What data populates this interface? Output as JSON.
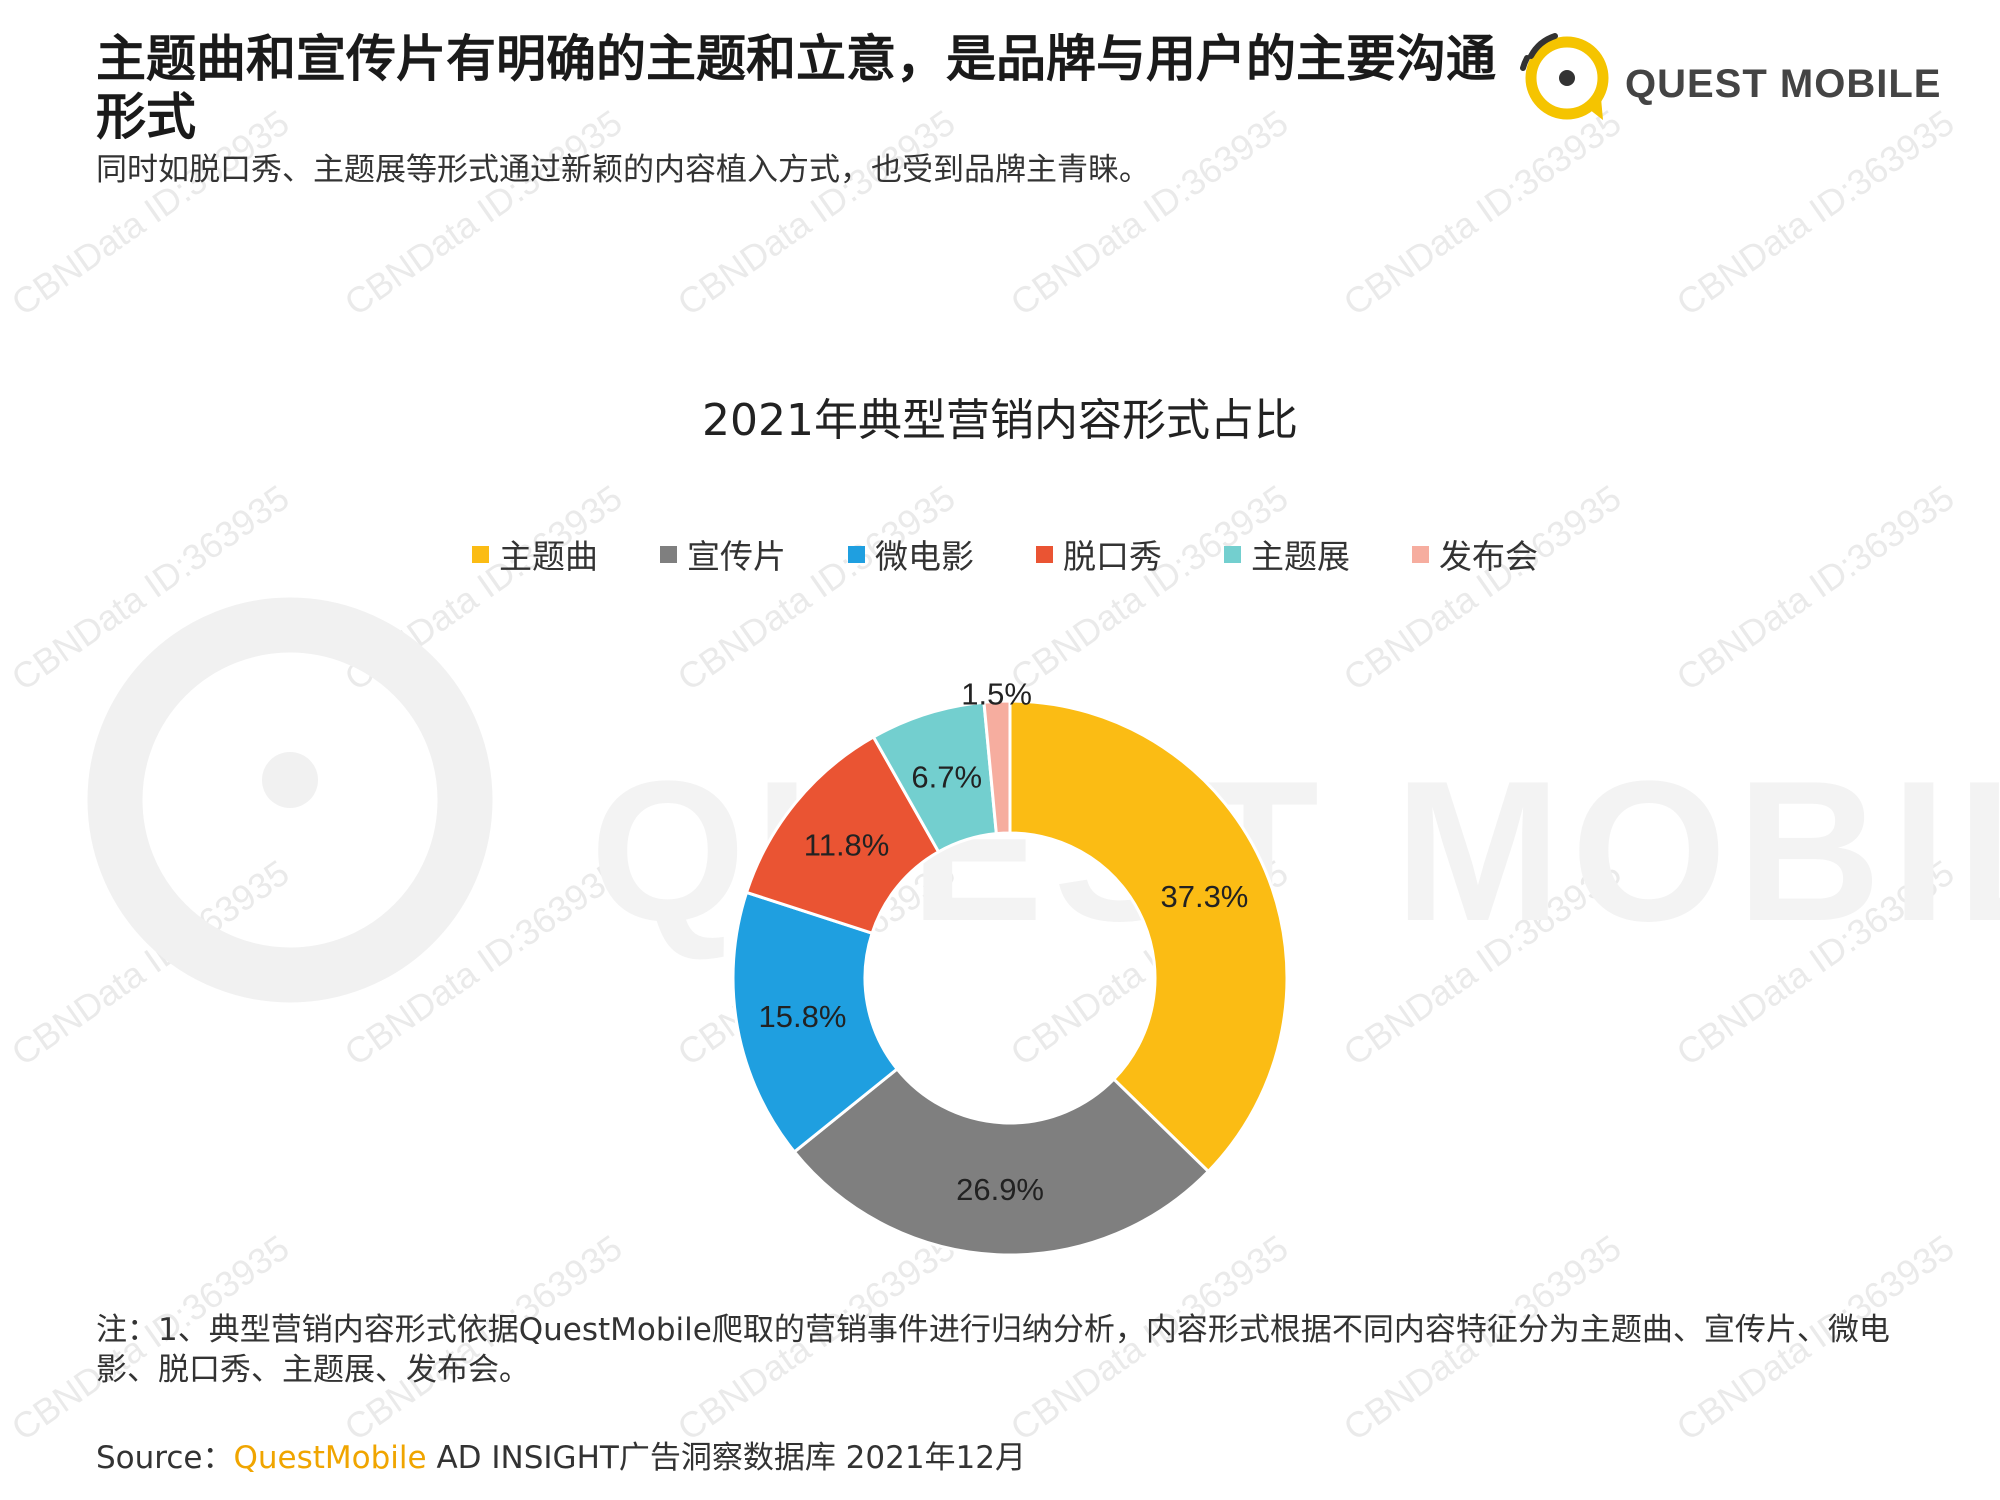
{
  "header": {
    "headline": "主题曲和宣传片有明确的主题和立意，是品牌与用户的主要沟通形式",
    "subhead": "同时如脱口秀、主题展等形式通过新颖的内容植入方式，也受到品牌主青睐。",
    "logo_text": "QUEST MOBILE"
  },
  "watermark": {
    "text": "CBNData ID:363935",
    "big_text": "QUEST MOBILE"
  },
  "chart_data": {
    "type": "pie",
    "title": "2021年典型营销内容形式占比",
    "donut": true,
    "legend_position": "top",
    "unit": "%",
    "categories": [
      "主题曲",
      "宣传片",
      "微电影",
      "脱口秀",
      "主题展",
      "发布会"
    ],
    "values": [
      37.3,
      26.9,
      15.8,
      11.8,
      6.7,
      1.5
    ],
    "labels": [
      "37.3%",
      "26.9%",
      "15.8%",
      "11.8%",
      "6.7%",
      "1.5%"
    ],
    "colors": [
      "#fbbc14",
      "#7f7f7f",
      "#1f9fe0",
      "#ea5433",
      "#73cfcf",
      "#f6ad9f"
    ]
  },
  "footer": {
    "note": "注：1、典型营销内容形式依据QuestMobile爬取的营销事件进行归纳分析，内容形式根据不同内容特征分为主题曲、宣传片、微电影、脱口秀、主题展、发布会。",
    "source_label": "Source：",
    "source_brand": "QuestMobile",
    "source_rest": " AD INSIGHT广告洞察数据库 2021年12月"
  }
}
